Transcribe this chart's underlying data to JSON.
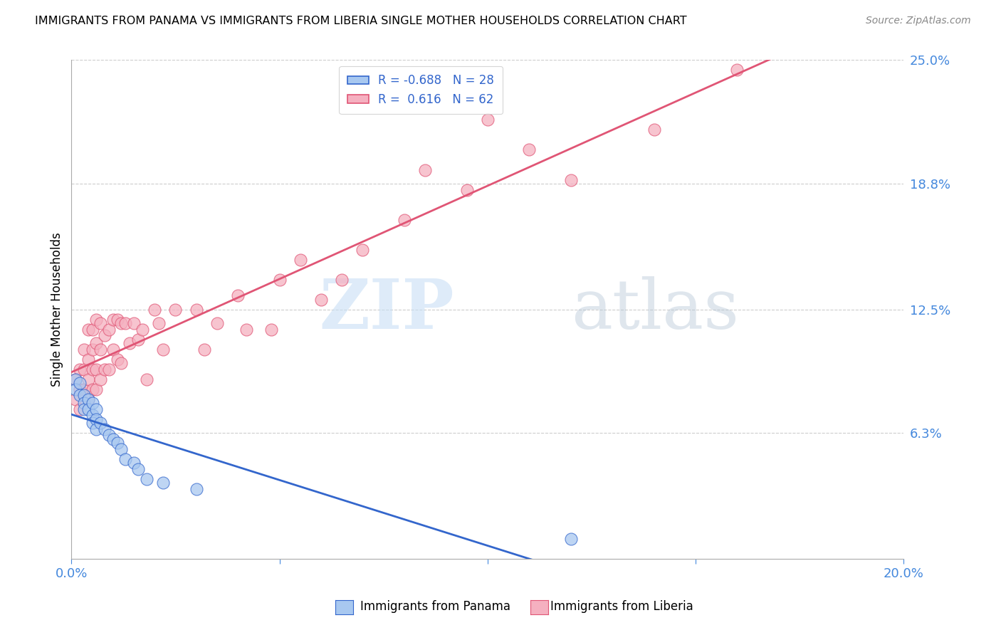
{
  "title": "IMMIGRANTS FROM PANAMA VS IMMIGRANTS FROM LIBERIA SINGLE MOTHER HOUSEHOLDS CORRELATION CHART",
  "source": "Source: ZipAtlas.com",
  "ylabel": "Single Mother Households",
  "x_min": 0.0,
  "x_max": 0.2,
  "y_min": 0.0,
  "y_max": 0.25,
  "y_tick_labels_right": [
    "6.3%",
    "12.5%",
    "18.8%",
    "25.0%"
  ],
  "y_tick_vals_right": [
    0.063,
    0.125,
    0.188,
    0.25
  ],
  "panama_color": "#a8c8f0",
  "liberia_color": "#f5b0c0",
  "panama_line_color": "#3366cc",
  "liberia_line_color": "#e05575",
  "panama_R": -0.688,
  "panama_N": 28,
  "liberia_R": 0.616,
  "liberia_N": 62,
  "panama_scatter_x": [
    0.001,
    0.001,
    0.002,
    0.002,
    0.003,
    0.003,
    0.003,
    0.004,
    0.004,
    0.005,
    0.005,
    0.005,
    0.006,
    0.006,
    0.006,
    0.007,
    0.008,
    0.009,
    0.01,
    0.011,
    0.012,
    0.013,
    0.015,
    0.016,
    0.018,
    0.022,
    0.03,
    0.12
  ],
  "panama_scatter_y": [
    0.09,
    0.085,
    0.088,
    0.082,
    0.082,
    0.078,
    0.075,
    0.08,
    0.075,
    0.078,
    0.072,
    0.068,
    0.075,
    0.07,
    0.065,
    0.068,
    0.065,
    0.062,
    0.06,
    0.058,
    0.055,
    0.05,
    0.048,
    0.045,
    0.04,
    0.038,
    0.035,
    0.01
  ],
  "liberia_scatter_x": [
    0.001,
    0.001,
    0.002,
    0.002,
    0.002,
    0.003,
    0.003,
    0.003,
    0.004,
    0.004,
    0.004,
    0.004,
    0.005,
    0.005,
    0.005,
    0.005,
    0.006,
    0.006,
    0.006,
    0.006,
    0.007,
    0.007,
    0.007,
    0.008,
    0.008,
    0.009,
    0.009,
    0.01,
    0.01,
    0.011,
    0.011,
    0.012,
    0.012,
    0.013,
    0.014,
    0.015,
    0.016,
    0.017,
    0.018,
    0.02,
    0.021,
    0.022,
    0.025,
    0.03,
    0.032,
    0.035,
    0.04,
    0.042,
    0.048,
    0.05,
    0.055,
    0.06,
    0.065,
    0.07,
    0.08,
    0.085,
    0.095,
    0.1,
    0.11,
    0.12,
    0.14,
    0.16
  ],
  "liberia_scatter_y": [
    0.09,
    0.08,
    0.095,
    0.085,
    0.075,
    0.105,
    0.095,
    0.085,
    0.115,
    0.1,
    0.09,
    0.08,
    0.115,
    0.105,
    0.095,
    0.085,
    0.12,
    0.108,
    0.095,
    0.085,
    0.118,
    0.105,
    0.09,
    0.112,
    0.095,
    0.115,
    0.095,
    0.12,
    0.105,
    0.12,
    0.1,
    0.118,
    0.098,
    0.118,
    0.108,
    0.118,
    0.11,
    0.115,
    0.09,
    0.125,
    0.118,
    0.105,
    0.125,
    0.125,
    0.105,
    0.118,
    0.132,
    0.115,
    0.115,
    0.14,
    0.15,
    0.13,
    0.14,
    0.155,
    0.17,
    0.195,
    0.185,
    0.22,
    0.205,
    0.19,
    0.215,
    0.245
  ]
}
